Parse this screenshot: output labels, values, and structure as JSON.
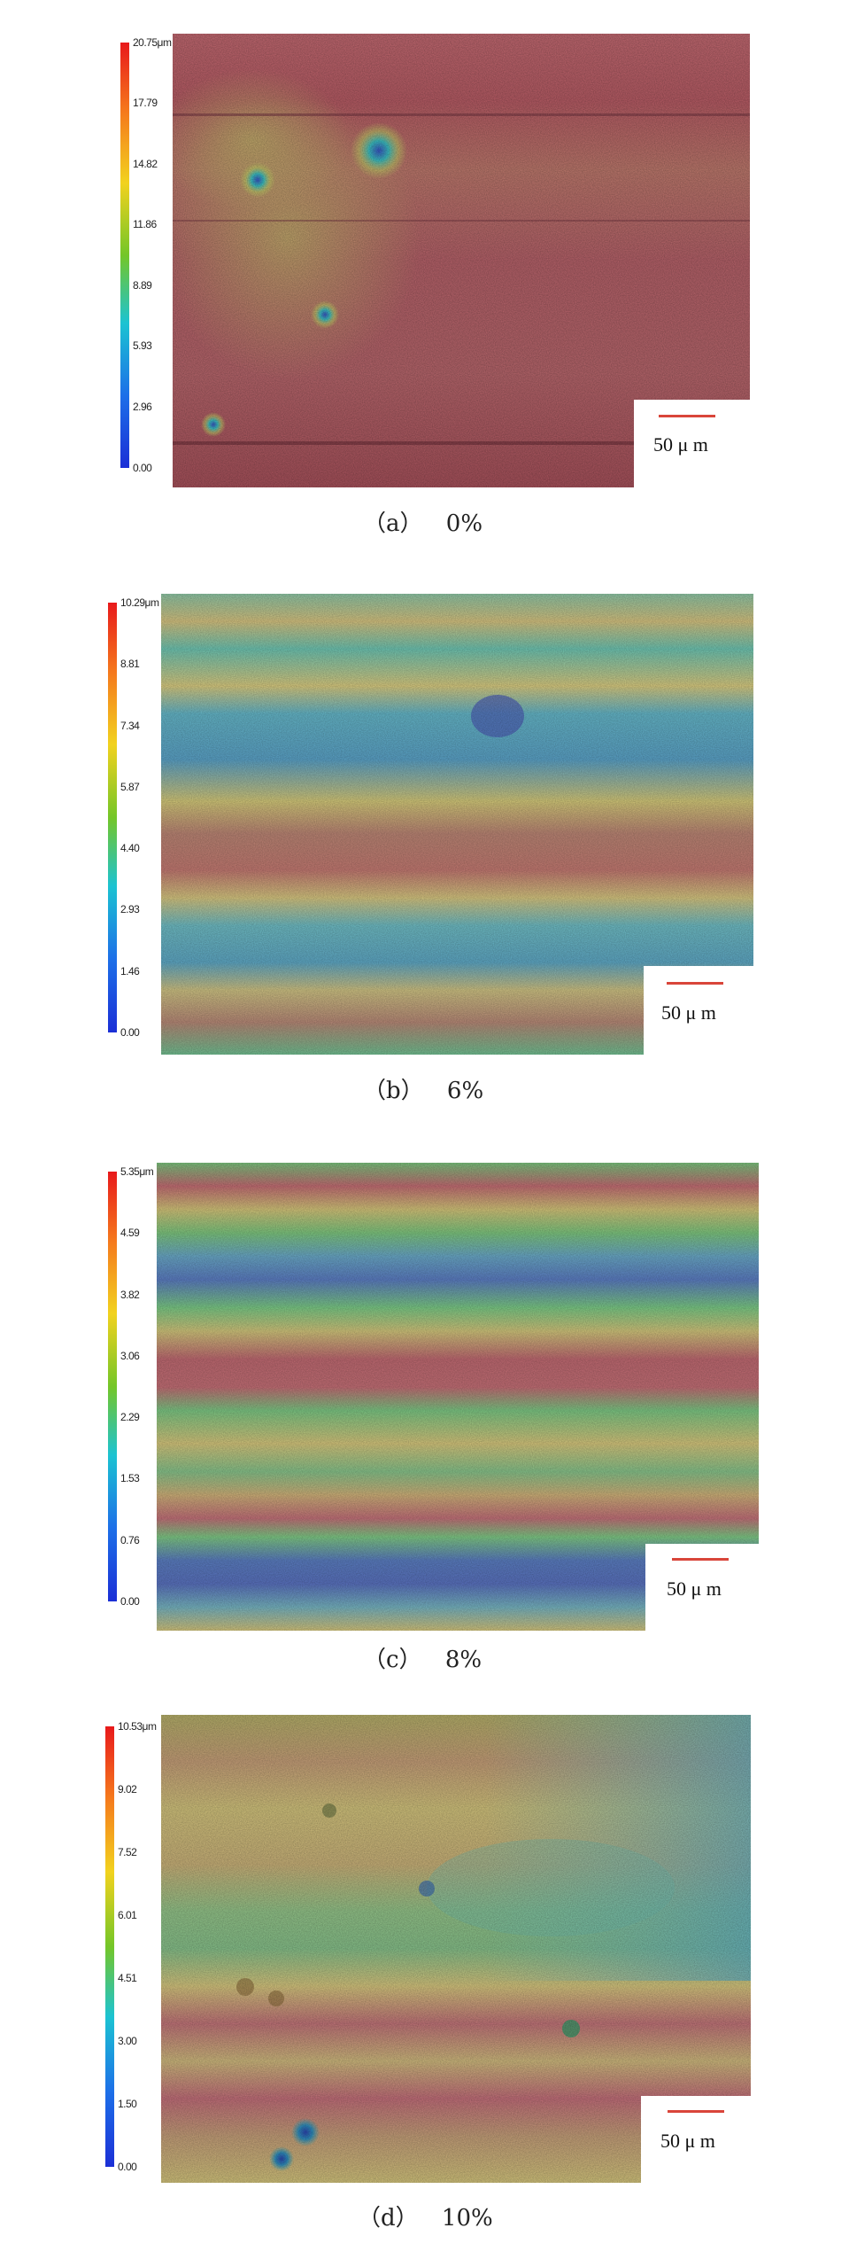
{
  "panels": [
    {
      "colorbar_ticks": [
        "20.75μm",
        "17.79",
        "14.82",
        "11.86",
        "8.89",
        "5.93",
        "2.96",
        "0.00"
      ],
      "scale_label": "50 μ m",
      "caption_letter": "（a）",
      "caption_value": "0%"
    },
    {
      "colorbar_ticks": [
        "10.29μm",
        "8.81",
        "7.34",
        "5.87",
        "4.40",
        "2.93",
        "1.46",
        "0.00"
      ],
      "scale_label": "50 μ m",
      "caption_letter": "（b）",
      "caption_value": "6%"
    },
    {
      "colorbar_ticks": [
        "5.35μm",
        "4.59",
        "3.82",
        "3.06",
        "2.29",
        "1.53",
        "0.76",
        "0.00"
      ],
      "scale_label": "50 μ m",
      "caption_letter": "（c）",
      "caption_value": "8%"
    },
    {
      "colorbar_ticks": [
        "10.53μm",
        "9.02",
        "7.52",
        "6.01",
        "4.51",
        "3.00",
        "1.50",
        "0.00"
      ],
      "scale_label": "50 μ m",
      "caption_letter": "（d）",
      "caption_value": "10%"
    }
  ],
  "colors": {
    "scale_bar": "#d9453a",
    "height_high": "#e8191b",
    "height_low": "#1b2fd6"
  }
}
